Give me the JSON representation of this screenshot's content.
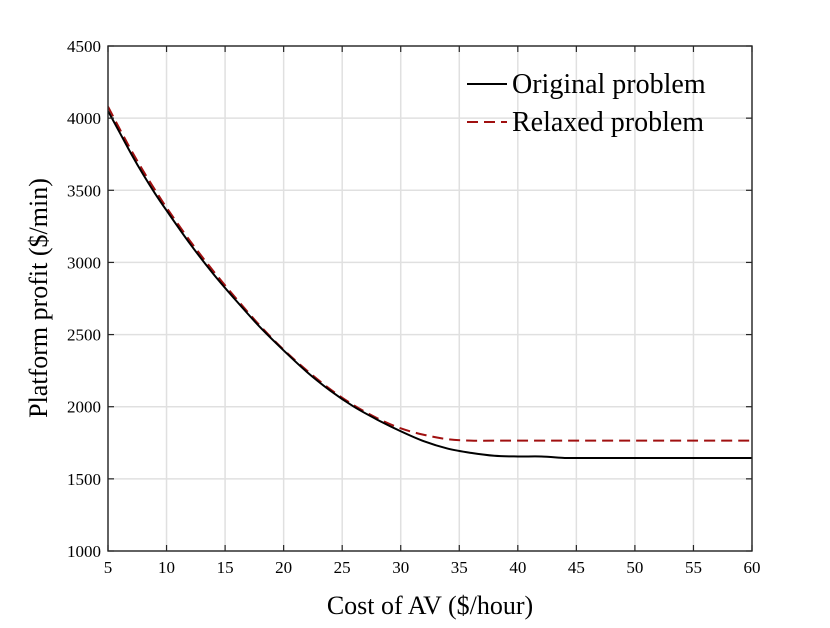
{
  "chart_data": {
    "type": "line",
    "title": "",
    "xlabel": "Cost of AV ($/hour)",
    "ylabel": "Platform profit ($/min)",
    "xlim": [
      5,
      60
    ],
    "ylim": [
      1000,
      4500
    ],
    "xticks": [
      5,
      10,
      15,
      20,
      25,
      30,
      35,
      40,
      45,
      50,
      55,
      60
    ],
    "yticks": [
      1000,
      1500,
      2000,
      2500,
      3000,
      3500,
      4000,
      4500
    ],
    "grid": true,
    "legend_position": "top-right",
    "series": [
      {
        "name": "Original problem",
        "color": "#000000",
        "style": "solid",
        "x": [
          5,
          6,
          7,
          8,
          9,
          10,
          12,
          14,
          16,
          18,
          20,
          22,
          24,
          26,
          28,
          30,
          32,
          34,
          36,
          38,
          40,
          42,
          44,
          45,
          48,
          50,
          55,
          60
        ],
        "y": [
          4050,
          3900,
          3750,
          3610,
          3480,
          3360,
          3130,
          2920,
          2730,
          2550,
          2390,
          2240,
          2110,
          2000,
          1910,
          1830,
          1760,
          1710,
          1680,
          1660,
          1655,
          1655,
          1645,
          1645,
          1645,
          1645,
          1645,
          1645
        ]
      },
      {
        "name": "Relaxed problem",
        "color": "#a01010",
        "style": "dashed",
        "x": [
          5,
          6,
          7,
          8,
          9,
          10,
          12,
          14,
          16,
          18,
          20,
          22,
          24,
          26,
          28,
          30,
          32,
          34,
          36,
          38,
          40,
          45,
          50,
          55,
          60
        ],
        "y": [
          4080,
          3925,
          3775,
          3635,
          3505,
          3380,
          3150,
          2940,
          2745,
          2560,
          2395,
          2250,
          2120,
          2010,
          1920,
          1850,
          1805,
          1775,
          1765,
          1765,
          1765,
          1765,
          1765,
          1765,
          1765
        ]
      }
    ]
  }
}
